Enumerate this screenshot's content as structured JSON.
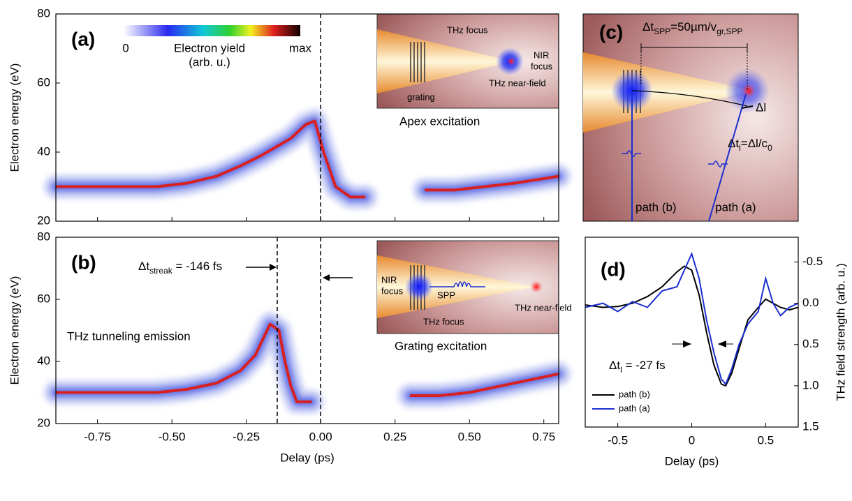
{
  "chart_data": [
    {
      "type": "heatmap",
      "label": "(a)",
      "ylabel": "Electron energy (eV)",
      "ylim": [
        20,
        80
      ],
      "yticks": [
        20,
        40,
        60,
        80
      ],
      "xlim": [
        -0.89,
        0.8
      ],
      "xticks": [
        -0.75,
        -0.5,
        -0.25,
        0,
        0.25,
        0.5,
        0.75
      ],
      "vlines": [
        0
      ],
      "colorbar": {
        "min_label": "0",
        "max_label": "max",
        "title": [
          "Electron yield",
          "(arb. u.)"
        ]
      },
      "x": [
        -0.89,
        -0.7,
        -0.55,
        -0.45,
        -0.35,
        -0.27,
        -0.2,
        -0.14,
        -0.1,
        -0.05,
        -0.02,
        0.01,
        0.05,
        0.1,
        0.15,
        0.22,
        0.35,
        0.45,
        0.55,
        0.65,
        0.8
      ],
      "values": [
        30,
        30,
        30,
        31,
        33,
        36,
        39,
        42,
        44,
        48,
        49,
        40,
        30,
        27,
        27,
        null,
        29,
        29,
        30,
        31,
        33
      ],
      "inset": {
        "labels": [
          "THz focus",
          "grating",
          "THz near-field"
        ],
        "nir": [
          "NIR",
          "focus"
        ],
        "caption": "Apex excitation"
      }
    },
    {
      "type": "heatmap",
      "label": "(b)",
      "xlabel": "Delay (ps)",
      "ylabel": "Electron energy (eV)",
      "ylim": [
        20,
        80
      ],
      "yticks": [
        20,
        40,
        60,
        80
      ],
      "xlim": [
        -0.89,
        0.8
      ],
      "xticks": [
        {
          "value": -0.75,
          "label": "-0.75"
        },
        {
          "value": -0.5,
          "label": "-0.50"
        },
        {
          "value": -0.25,
          "label": "-0.25"
        },
        {
          "value": 0,
          "label": "0.00"
        },
        {
          "value": 0.25,
          "label": "0.25"
        },
        {
          "value": 0.5,
          "label": "0.50"
        },
        {
          "value": 0.75,
          "label": "0.75"
        }
      ],
      "vlines": [
        -0.146,
        0
      ],
      "annotation": {
        "main": "Δt",
        "sub": "streak",
        "rest": " = -146 fs"
      },
      "note": "THz tunneling emission",
      "x": [
        -0.89,
        -0.7,
        -0.55,
        -0.45,
        -0.35,
        -0.27,
        -0.22,
        -0.19,
        -0.17,
        -0.14,
        -0.12,
        -0.1,
        -0.08,
        -0.03,
        0.05,
        0.3,
        0.4,
        0.5,
        0.6,
        0.7,
        0.8
      ],
      "values": [
        30,
        30,
        30,
        31,
        33,
        37,
        42,
        48,
        52,
        50,
        40,
        32,
        27,
        27,
        null,
        29,
        29,
        30,
        32,
        34,
        36
      ],
      "inset": {
        "labels": [
          "SPP",
          "THz focus",
          "THz near-field"
        ],
        "nir": [
          "NIR",
          "focus"
        ],
        "caption": "Grating excitation"
      }
    },
    {
      "type": "line",
      "label": "(d)",
      "xlabel": "Delay (ps)",
      "ylabel": "THz field strength (arb. u.)",
      "xlim": [
        -0.72,
        0.72
      ],
      "xticks": [
        -0.5,
        0.0,
        0.5
      ],
      "ylim": [
        1.5,
        -0.8
      ],
      "yticks": [
        {
          "value": -0.5,
          "label": "-0.5"
        },
        {
          "value": 0,
          "label": "0.0"
        },
        {
          "value": 0.5,
          "label": "0.5"
        },
        {
          "value": 1,
          "label": "1.0"
        },
        {
          "value": 1.5,
          "label": "1.5"
        }
      ],
      "annotation": {
        "main": "Δt",
        "sub": "l",
        "rest": " = -27 fs"
      },
      "x": [
        -0.72,
        -0.6,
        -0.5,
        -0.4,
        -0.3,
        -0.2,
        -0.1,
        -0.05,
        0.0,
        0.05,
        0.1,
        0.15,
        0.2,
        0.23,
        0.27,
        0.32,
        0.38,
        0.45,
        0.5,
        0.55,
        0.6,
        0.66,
        0.72
      ],
      "series": [
        {
          "name": "path (b)",
          "color": "#000000",
          "values": [
            0.02,
            0.05,
            0.04,
            0.0,
            -0.08,
            -0.2,
            -0.38,
            -0.45,
            -0.4,
            -0.1,
            0.35,
            0.75,
            0.98,
            1.0,
            0.85,
            0.55,
            0.2,
            0.05,
            -0.05,
            0.0,
            0.05,
            0.08,
            0.05
          ]
        },
        {
          "name": "path (a)",
          "color": "#1a2fd0",
          "values": [
            0.05,
            0.0,
            0.1,
            -0.02,
            0.05,
            -0.15,
            -0.2,
            -0.4,
            -0.6,
            -0.3,
            0.2,
            0.6,
            0.92,
            0.98,
            0.8,
            0.5,
            0.25,
            0.1,
            -0.3,
            0.0,
            0.15,
            0.05,
            0.0
          ]
        }
      ]
    }
  ],
  "diagram_c": {
    "label": "(c)",
    "spp": {
      "main": "Δt",
      "sub": "SPP",
      "mid": "=50µm/v",
      "sub2": "gr,SPP"
    },
    "dl": "Δl",
    "dtl": {
      "main": "Δt",
      "sub": "l",
      "mid": "=Δl/c",
      "sub2": "0"
    },
    "path_b": "path (b)",
    "path_a": "path (a)"
  }
}
